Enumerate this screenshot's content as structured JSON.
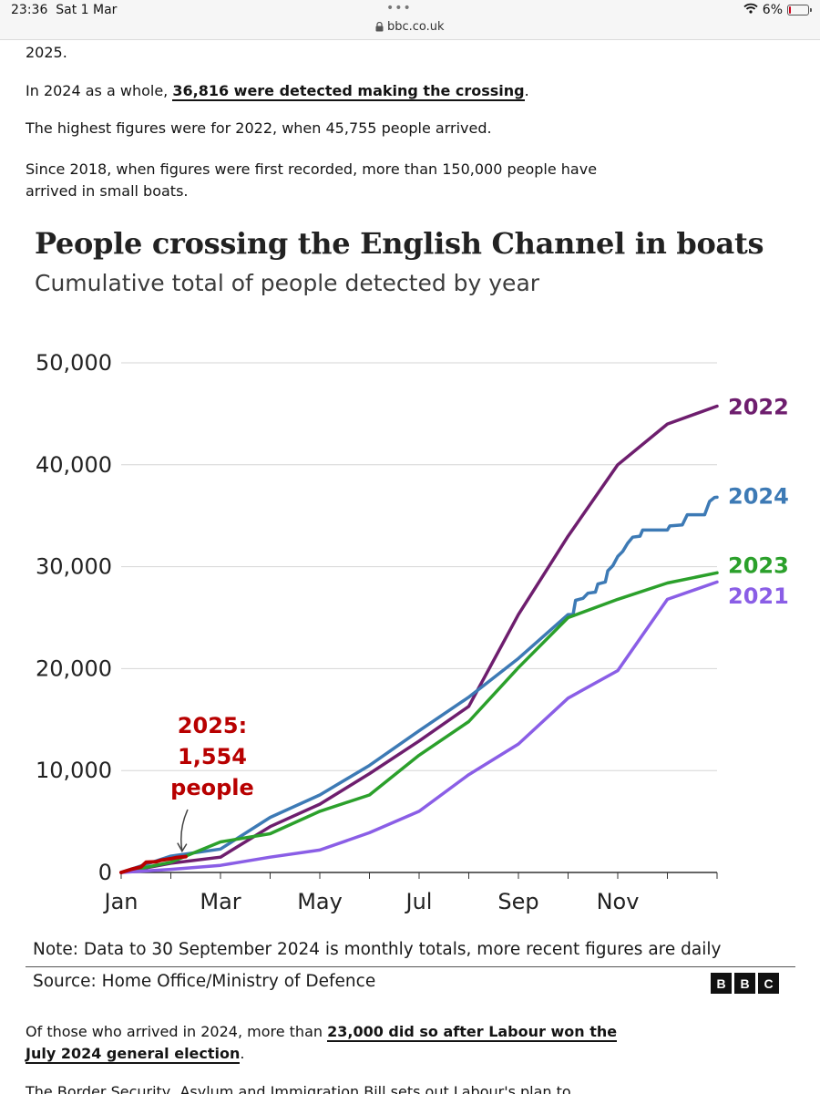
{
  "status_bar": {
    "time": "23:36",
    "date": "Sat 1 Mar",
    "url": "bbc.co.uk",
    "battery": "6%",
    "battery_level": 0.06
  },
  "article": {
    "p0": "2025.",
    "p1_before": "In 2024 as a whole, ",
    "p1_link": "36,816 were detected making the crossing",
    "p1_after": ".",
    "p2": "The highest figures were for 2022, when 45,755 people arrived.",
    "p3": "Since 2018, when figures were first recorded, more than 150,000 people have arrived in small boats.",
    "p4_before": "Of those who arrived in 2024, more than ",
    "p4_link": "23,000 did so after Labour won the July 2024 general election",
    "p4_after": ".",
    "p5": "The Border Security, Asylum and Immigration Bill sets out Labour's plan to"
  },
  "chart": {
    "title": "People crossing the English Channel in boats",
    "subtitle": "Cumulative total of people detected by year",
    "note": "Note: Data to 30 September 2024 is monthly totals, more recent figures are daily",
    "source": "Source: Home Office/Ministry of Defence",
    "logo": [
      "B",
      "B",
      "C"
    ],
    "annotation": [
      "2025:",
      "1,554",
      "people"
    ]
  },
  "chart_data": {
    "type": "line",
    "title": "People crossing the English Channel in boats",
    "subtitle": "Cumulative total of people detected by year",
    "xlabel": "",
    "ylabel": "",
    "x_tick_labels": [
      "Jan",
      "Mar",
      "May",
      "Jul",
      "Sep",
      "Nov"
    ],
    "y_ticks": [
      0,
      10000,
      20000,
      30000,
      40000,
      50000
    ],
    "y_tick_labels": [
      "0",
      "10,000",
      "20,000",
      "30,000",
      "40,000",
      "50,000"
    ],
    "ylim": [
      0,
      50000
    ],
    "xlim_months": [
      0,
      12
    ],
    "grid": "horizontal",
    "legend": "inline labels at line ends",
    "series": [
      {
        "name": "2022",
        "color": "#6e1e6e",
        "points": [
          [
            0,
            0
          ],
          [
            1,
            900
          ],
          [
            2,
            1500
          ],
          [
            3,
            4500
          ],
          [
            4,
            6700
          ],
          [
            5,
            9700
          ],
          [
            6,
            12900
          ],
          [
            7,
            16300
          ],
          [
            8,
            25300
          ],
          [
            9,
            33000
          ],
          [
            10,
            40000
          ],
          [
            11,
            44000
          ],
          [
            12,
            45755
          ]
        ]
      },
      {
        "name": "2024",
        "color": "#3d7ab5",
        "points": [
          [
            0,
            0
          ],
          [
            1,
            1600
          ],
          [
            2,
            2300
          ],
          [
            3,
            5400
          ],
          [
            4,
            7600
          ],
          [
            5,
            10500
          ],
          [
            6,
            13900
          ],
          [
            7,
            17200
          ],
          [
            8,
            21000
          ],
          [
            9,
            25300
          ],
          [
            9.1,
            25300
          ],
          [
            9.15,
            26700
          ],
          [
            9.3,
            26900
          ],
          [
            9.4,
            27400
          ],
          [
            9.55,
            27500
          ],
          [
            9.6,
            28300
          ],
          [
            9.75,
            28500
          ],
          [
            9.8,
            29600
          ],
          [
            9.9,
            30100
          ],
          [
            10,
            31000
          ],
          [
            10.1,
            31500
          ],
          [
            10.2,
            32300
          ],
          [
            10.3,
            32900
          ],
          [
            10.45,
            33000
          ],
          [
            10.5,
            33600
          ],
          [
            11,
            33600
          ],
          [
            11.05,
            34000
          ],
          [
            11.3,
            34100
          ],
          [
            11.4,
            35100
          ],
          [
            11.75,
            35100
          ],
          [
            11.85,
            36400
          ],
          [
            11.95,
            36800
          ],
          [
            12,
            36816
          ]
        ]
      },
      {
        "name": "2023",
        "color": "#2ba02b",
        "points": [
          [
            0,
            0
          ],
          [
            1,
            1000
          ],
          [
            2,
            3000
          ],
          [
            3,
            3800
          ],
          [
            4,
            6000
          ],
          [
            5,
            7600
          ],
          [
            6,
            11500
          ],
          [
            7,
            14800
          ],
          [
            8,
            20100
          ],
          [
            9,
            25000
          ],
          [
            10,
            26800
          ],
          [
            11,
            28400
          ],
          [
            12,
            29400
          ]
        ]
      },
      {
        "name": "2021",
        "color": "#8a5ee6",
        "points": [
          [
            0,
            0
          ],
          [
            1,
            300
          ],
          [
            2,
            700
          ],
          [
            3,
            1500
          ],
          [
            4,
            2200
          ],
          [
            5,
            3900
          ],
          [
            6,
            6000
          ],
          [
            7,
            9600
          ],
          [
            8,
            12600
          ],
          [
            9,
            17100
          ],
          [
            10,
            19800
          ],
          [
            11,
            26800
          ],
          [
            12,
            28500
          ]
        ]
      },
      {
        "name": "2025",
        "color": "#b80000",
        "points": [
          [
            0,
            0
          ],
          [
            0.2,
            300
          ],
          [
            0.4,
            550
          ],
          [
            0.5,
            1000
          ],
          [
            0.7,
            1050
          ],
          [
            0.8,
            1200
          ],
          [
            1.0,
            1350
          ],
          [
            1.1,
            1450
          ],
          [
            1.3,
            1554
          ]
        ]
      }
    ],
    "labels": [
      {
        "text": "2022",
        "series": "2022",
        "color": "#6e1e6e",
        "y": 45755
      },
      {
        "text": "2024",
        "series": "2024",
        "color": "#3d7ab5",
        "y": 37000
      },
      {
        "text": "2023",
        "series": "2023",
        "color": "#2ba02b",
        "y": 30200
      },
      {
        "text": "2021",
        "series": "2021",
        "color": "#8a5ee6",
        "y": 27200
      }
    ]
  }
}
